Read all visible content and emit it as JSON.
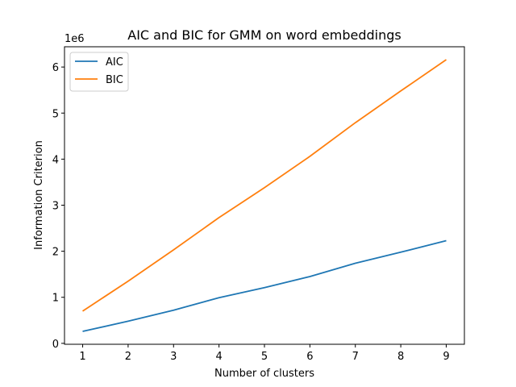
{
  "chart_data": {
    "type": "line",
    "title": "AIC and BIC for GMM on word embeddings",
    "xlabel": "Number of clusters",
    "ylabel": "Information Criterion",
    "y_offset_label": "1e6",
    "x": [
      1,
      2,
      3,
      4,
      5,
      6,
      7,
      8,
      9
    ],
    "xticks": [
      "1",
      "2",
      "3",
      "4",
      "5",
      "6",
      "7",
      "8",
      "9"
    ],
    "yticks": [
      "0",
      "1",
      "2",
      "3",
      "4",
      "5",
      "6"
    ],
    "xlim": [
      0.6,
      9.4
    ],
    "ylim": [
      -0.02,
      6.44
    ],
    "y_scale_note": "values in units of 1e6",
    "legend_position": "upper-left",
    "grid": false,
    "series": [
      {
        "name": "AIC",
        "color": "#1f77b4",
        "values": [
          0.26,
          0.48,
          0.72,
          0.99,
          1.21,
          1.45,
          1.74,
          1.98,
          2.23
        ]
      },
      {
        "name": "BIC",
        "color": "#ff7f0e",
        "values": [
          0.7,
          1.35,
          2.03,
          2.73,
          3.38,
          4.06,
          4.79,
          5.48,
          6.16
        ]
      }
    ]
  }
}
